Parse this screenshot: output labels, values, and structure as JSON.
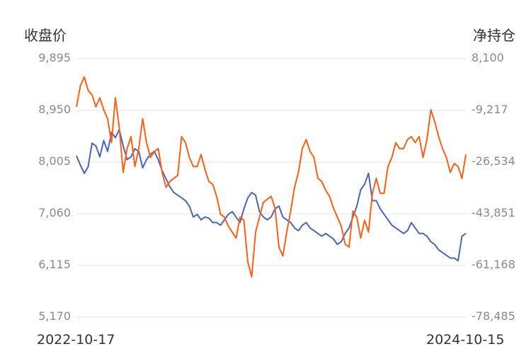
{
  "chart_data": {
    "type": "line",
    "title": "",
    "left_axis": {
      "label": "收盘价",
      "ticks": [
        "9,895",
        "8,950",
        "8,005",
        "7,060",
        "6,115",
        "5,170"
      ],
      "range": [
        5170,
        9895
      ]
    },
    "right_axis": {
      "label": "净持仓",
      "ticks": [
        "8,100",
        "-9,217",
        "-26,534",
        "-43,851",
        "-61,168",
        "-78,485"
      ],
      "range": [
        -78485,
        8100
      ]
    },
    "x_labels": {
      "start": "2022-10-17",
      "end": "2024-10-15"
    },
    "grid": true,
    "legend": "none",
    "series": [
      {
        "name": "收盘价",
        "axis": "left",
        "color": "#4a62c8",
        "x": [
          0,
          0.01,
          0.02,
          0.03,
          0.04,
          0.05,
          0.06,
          0.07,
          0.08,
          0.09,
          0.1,
          0.11,
          0.12,
          0.13,
          0.14,
          0.15,
          0.16,
          0.17,
          0.18,
          0.19,
          0.2,
          0.21,
          0.22,
          0.23,
          0.24,
          0.25,
          0.26,
          0.27,
          0.28,
          0.29,
          0.3,
          0.31,
          0.32,
          0.33,
          0.34,
          0.35,
          0.36,
          0.37,
          0.38,
          0.39,
          0.4,
          0.41,
          0.42,
          0.43,
          0.44,
          0.45,
          0.46,
          0.47,
          0.48,
          0.49,
          0.5,
          0.51,
          0.52,
          0.53,
          0.54,
          0.55,
          0.56,
          0.57,
          0.58,
          0.59,
          0.6,
          0.61,
          0.62,
          0.63,
          0.64,
          0.65,
          0.66,
          0.67,
          0.68,
          0.69,
          0.7,
          0.71,
          0.72,
          0.73,
          0.74,
          0.75,
          0.76,
          0.77,
          0.78,
          0.79,
          0.8,
          0.81,
          0.82,
          0.83,
          0.84,
          0.85,
          0.86,
          0.87,
          0.88,
          0.89,
          0.9,
          0.91,
          0.92,
          0.93,
          0.94,
          0.95,
          0.96,
          0.97,
          0.98,
          0.99,
          1.0
        ],
        "values": [
          8120,
          7950,
          7800,
          7920,
          8350,
          8300,
          8100,
          8400,
          8200,
          8550,
          8450,
          8600,
          8300,
          8050,
          8100,
          8250,
          8200,
          7900,
          8050,
          8150,
          8200,
          8050,
          7850,
          7700,
          7550,
          7450,
          7400,
          7350,
          7300,
          7200,
          7000,
          7050,
          6950,
          7000,
          6980,
          6900,
          6900,
          6850,
          6950,
          7050,
          7100,
          7000,
          6900,
          7150,
          7350,
          7450,
          7400,
          7100,
          7000,
          6950,
          7000,
          7150,
          7200,
          7000,
          6950,
          6900,
          6800,
          6750,
          6850,
          6900,
          6800,
          6750,
          6700,
          6650,
          6700,
          6650,
          6600,
          6500,
          6550,
          6700,
          6800,
          7000,
          7200,
          7500,
          7600,
          7800,
          7300,
          7300,
          7150,
          7050,
          6950,
          6850,
          6800,
          6750,
          6700,
          6750,
          6900,
          6800,
          6700,
          6700,
          6650,
          6550,
          6500,
          6400,
          6350,
          6300,
          6250,
          6250,
          6200,
          6650,
          6700
        ],
        "end_value": 6700
      },
      {
        "name": "净持仓",
        "axis": "right",
        "color": "#ff5f0f",
        "x": [
          0,
          0.01,
          0.02,
          0.03,
          0.04,
          0.05,
          0.06,
          0.07,
          0.08,
          0.09,
          0.1,
          0.11,
          0.12,
          0.13,
          0.14,
          0.15,
          0.16,
          0.17,
          0.18,
          0.19,
          0.2,
          0.21,
          0.22,
          0.23,
          0.24,
          0.25,
          0.26,
          0.27,
          0.28,
          0.29,
          0.3,
          0.31,
          0.32,
          0.33,
          0.34,
          0.35,
          0.36,
          0.37,
          0.38,
          0.39,
          0.4,
          0.41,
          0.42,
          0.43,
          0.44,
          0.45,
          0.46,
          0.47,
          0.48,
          0.49,
          0.5,
          0.51,
          0.52,
          0.53,
          0.54,
          0.55,
          0.56,
          0.57,
          0.58,
          0.59,
          0.6,
          0.61,
          0.62,
          0.63,
          0.64,
          0.65,
          0.66,
          0.67,
          0.68,
          0.69,
          0.7,
          0.71,
          0.72,
          0.73,
          0.74,
          0.75,
          0.76,
          0.77,
          0.78,
          0.79,
          0.8,
          0.81,
          0.82,
          0.83,
          0.84,
          0.85,
          0.86,
          0.87,
          0.88,
          0.89,
          0.9,
          0.91,
          0.92,
          0.93,
          0.94,
          0.95,
          0.96,
          0.97,
          0.98,
          0.99,
          1.0
        ],
        "values": [
          -8000,
          -1000,
          2000,
          -2500,
          -4000,
          -8000,
          -5000,
          -9000,
          -12000,
          -20000,
          -5000,
          -15000,
          -30000,
          -22000,
          -18000,
          -28000,
          -22000,
          -12000,
          -20000,
          -25000,
          -23000,
          -22000,
          -30000,
          -35000,
          -33000,
          -32000,
          -31000,
          -18000,
          -20000,
          -25000,
          -28000,
          -28000,
          -24000,
          -29000,
          -33000,
          -34000,
          -38000,
          -44000,
          -45000,
          -48000,
          -50000,
          -52000,
          -45000,
          -46000,
          -60000,
          -65000,
          -50000,
          -45000,
          -40000,
          -39000,
          -38000,
          -42000,
          -55000,
          -58000,
          -50000,
          -43000,
          -35000,
          -30000,
          -22000,
          -19000,
          -23000,
          -25000,
          -32000,
          -33000,
          -36000,
          -38000,
          -42000,
          -45000,
          -48000,
          -54000,
          -55000,
          -43000,
          -45000,
          -52000,
          -46000,
          -50000,
          -37000,
          -32000,
          -37000,
          -37000,
          -28000,
          -25000,
          -20000,
          -22000,
          -22000,
          -19000,
          -18000,
          -20000,
          -18000,
          -25000,
          -19000,
          -9000,
          -13000,
          -18000,
          -22000,
          -25000,
          -30000,
          -27000,
          -28000,
          -32000,
          -24000
        ],
        "end_value": -24000
      }
    ]
  }
}
